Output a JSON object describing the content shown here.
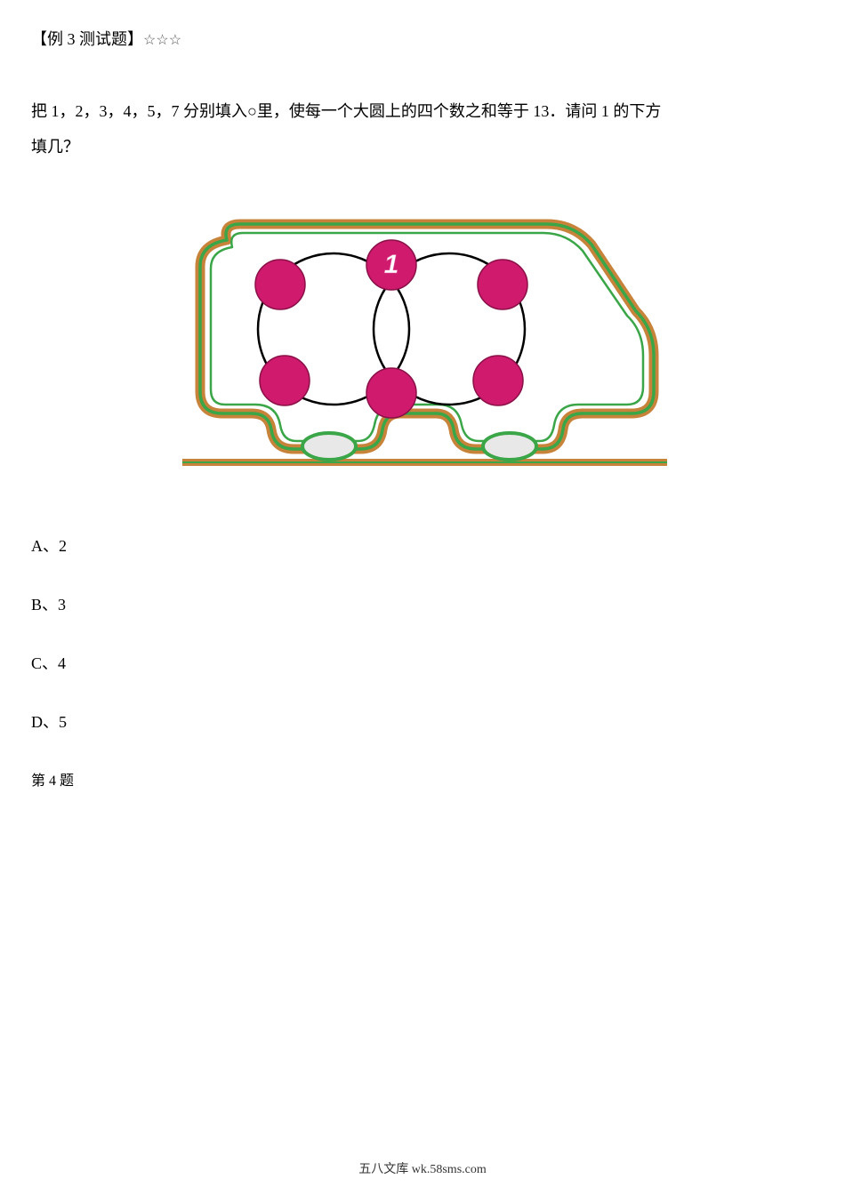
{
  "header": {
    "title": "【例 3 测试题】",
    "stars": "☆☆☆"
  },
  "question": {
    "line1": "把 1，2，3，4，5，7 分别填入○里，使每一个大圆上的四个数之和等于 13．请问 1 的下方",
    "line2": "填几？"
  },
  "diagram": {
    "outer_border_brown": "#c8833a",
    "outer_border_green": "#3aa648",
    "inner_border_green": "#3aa648",
    "dot_fill": "#d01a6e",
    "dot_stroke": "#8a1048",
    "circle_stroke": "#000000",
    "wheel_fill": "#e8e8e8",
    "wheel_stroke": "#3aa648",
    "number_fill": "#ffffff",
    "number_stroke": "#e05aa0",
    "ground_color": "#c8833a",
    "big_circle_radius": 85,
    "dot_radius": 28,
    "number_label": "1"
  },
  "options": {
    "a": "A、2",
    "b": "B、3",
    "c": "C、4",
    "d": "D、5"
  },
  "question_number": "第 4 题",
  "footer": {
    "text": "五八文库 wk.58sms.com"
  }
}
